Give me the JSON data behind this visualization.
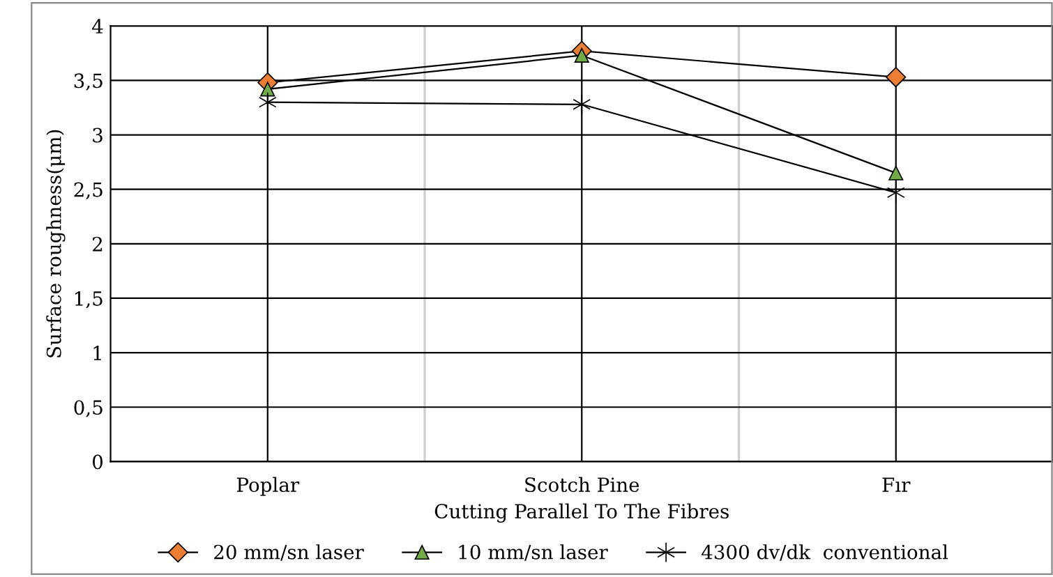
{
  "chart_data": {
    "type": "line",
    "xlabel": "Cutting Parallel To The Fibres",
    "ylabel": "Surface roughness(μm)",
    "categories": [
      "Poplar",
      "Scotch Pine",
      "Fır"
    ],
    "series": [
      {
        "name": "20 mm/sn laser",
        "color": "#ed7d31",
        "marker": "diamond",
        "values": [
          3.48,
          3.77,
          3.53
        ]
      },
      {
        "name": "10 mm/sn laser",
        "color": "#70ad47",
        "marker": "triangle",
        "values": [
          3.42,
          3.73,
          2.65
        ]
      },
      {
        "name": "4300 dv/dk  conventional",
        "color": "#000000",
        "marker": "cross",
        "values": [
          3.3,
          3.28,
          2.47
        ]
      }
    ],
    "ylim": [
      0,
      4
    ],
    "yticks": [
      0,
      {
        "value": 0.5,
        "label": "0,5"
      },
      1,
      {
        "value": 1.5,
        "label": "1,5"
      },
      2,
      {
        "value": 2.5,
        "label": "2,5"
      },
      3,
      {
        "value": 3.5,
        "label": "3,5"
      },
      4
    ],
    "grid": true,
    "legend": "bottom"
  }
}
